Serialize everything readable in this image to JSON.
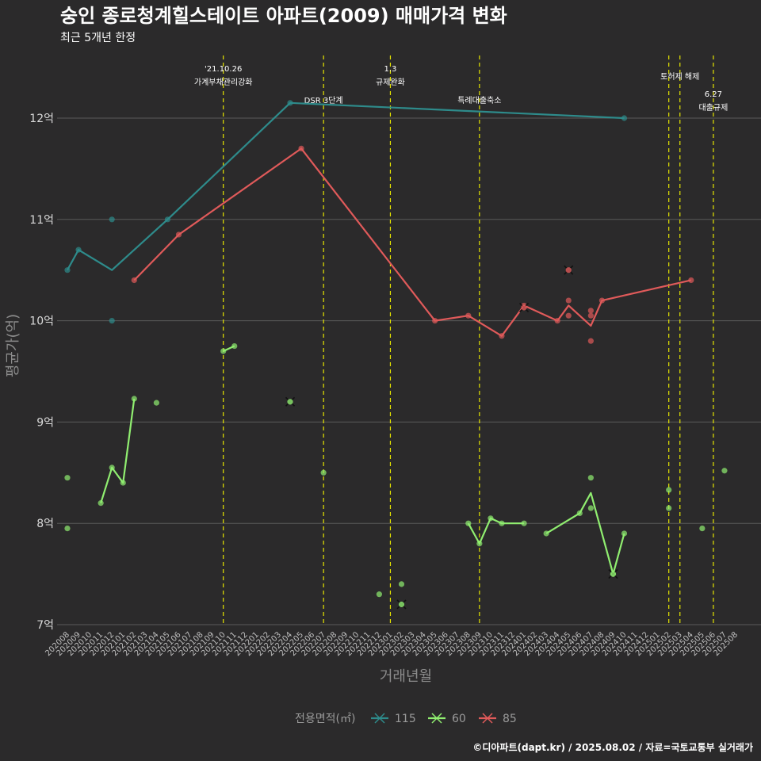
{
  "title": "숭인 종로청계힐스테이트 아파트(2009) 매매가격 변화",
  "subtitle": "최근 5개년 한정",
  "caption": "©디아파트(dapt.kr) / 2025.08.02 / 자료=국토교통부 실거래가",
  "chart_data": {
    "type": "line",
    "xlabel": "거래년월",
    "ylabel": "평균가(억)",
    "ylim": [
      7,
      12.6
    ],
    "yticks": [
      {
        "value": 7,
        "label": "7억"
      },
      {
        "value": 8,
        "label": "8억"
      },
      {
        "value": 9,
        "label": "9억"
      },
      {
        "value": 10,
        "label": "10억"
      },
      {
        "value": 11,
        "label": "11억"
      },
      {
        "value": 12,
        "label": "12억"
      }
    ],
    "x_categories": [
      "202008",
      "202009",
      "202010",
      "202011",
      "202012",
      "202101",
      "202102",
      "202103",
      "202104",
      "202105",
      "202106",
      "202107",
      "202108",
      "202109",
      "202110",
      "202111",
      "202112",
      "202201",
      "202202",
      "202203",
      "202204",
      "202205",
      "202206",
      "202207",
      "202208",
      "202209",
      "202210",
      "202211",
      "202212",
      "202301",
      "202302",
      "202303",
      "202304",
      "202305",
      "202306",
      "202307",
      "202308",
      "202309",
      "202310",
      "202311",
      "202312",
      "202401",
      "202402",
      "202403",
      "202404",
      "202405",
      "202406",
      "202407",
      "202408",
      "202409",
      "202410",
      "202411",
      "202412",
      "202501",
      "202502",
      "202503",
      "202504",
      "202505",
      "202506",
      "202507",
      "202508"
    ],
    "legend_title": "전용면적(㎡)",
    "series": [
      {
        "name": "115",
        "color": "#2e8b8b",
        "line": [
          [
            "202008",
            10.5
          ],
          [
            "202009",
            10.7
          ],
          [
            "202012",
            10.5
          ],
          [
            "202105",
            11.0
          ],
          [
            "202204",
            12.15
          ],
          [
            "202410",
            12.0
          ]
        ],
        "points": [
          [
            "202008",
            10.5
          ],
          [
            "202009",
            10.7
          ],
          [
            "202012",
            11.0
          ],
          [
            "202012",
            10.0
          ],
          [
            "202105",
            11.0
          ],
          [
            "202204",
            12.15
          ],
          [
            "202410",
            12.0
          ]
        ],
        "cancelled": []
      },
      {
        "name": "60",
        "color": "#90ee70",
        "line": [
          [
            "202011",
            8.2
          ],
          [
            "202012",
            8.55
          ],
          [
            "202101",
            8.4
          ],
          [
            "202102",
            9.23
          ]
        ],
        "line2": [
          [
            "202110",
            9.7
          ],
          [
            "202111",
            9.75
          ]
        ],
        "line3": [
          [
            "202308",
            8.0
          ],
          [
            "202309",
            7.8
          ],
          [
            "202310",
            8.05
          ],
          [
            "202311",
            8.0
          ],
          [
            "202401",
            8.0
          ]
        ],
        "line4": [
          [
            "202403",
            7.9
          ],
          [
            "202406",
            8.1
          ],
          [
            "202407",
            8.3
          ],
          [
            "202409",
            7.5
          ],
          [
            "202410",
            7.9
          ]
        ],
        "points": [
          [
            "202008",
            8.45
          ],
          [
            "202008",
            7.95
          ],
          [
            "202011",
            8.2
          ],
          [
            "202012",
            8.55
          ],
          [
            "202101",
            8.4
          ],
          [
            "202102",
            9.23
          ],
          [
            "202104",
            9.19
          ],
          [
            "202110",
            9.7
          ],
          [
            "202111",
            9.75
          ],
          [
            "202207",
            8.5
          ],
          [
            "202212",
            7.3
          ],
          [
            "202302",
            7.4
          ],
          [
            "202308",
            8.0
          ],
          [
            "202309",
            7.8
          ],
          [
            "202310",
            8.05
          ],
          [
            "202311",
            8.0
          ],
          [
            "202401",
            8.0
          ],
          [
            "202403",
            7.9
          ],
          [
            "202406",
            8.1
          ],
          [
            "202407",
            8.45
          ],
          [
            "202407",
            8.15
          ],
          [
            "202409",
            7.5
          ],
          [
            "202410",
            7.9
          ],
          [
            "202502",
            8.33
          ],
          [
            "202502",
            8.15
          ],
          [
            "202505",
            7.95
          ],
          [
            "202507",
            8.52
          ]
        ],
        "cancelled": [
          [
            "202204",
            9.2
          ],
          [
            "202302",
            7.2
          ],
          [
            "202409",
            7.5
          ]
        ]
      },
      {
        "name": "85",
        "color": "#e05a5a",
        "line": [
          [
            "202102",
            10.4
          ],
          [
            "202106",
            10.85
          ],
          [
            "202205",
            11.7
          ],
          [
            "202305",
            10.0
          ],
          [
            "202308",
            10.05
          ],
          [
            "202311",
            9.85
          ],
          [
            "202401",
            10.15
          ],
          [
            "202404",
            10.0
          ],
          [
            "202405",
            10.15
          ],
          [
            "202407",
            9.95
          ],
          [
            "202408",
            10.2
          ],
          [
            "202504",
            10.4
          ]
        ],
        "points": [
          [
            "202102",
            10.4
          ],
          [
            "202106",
            10.85
          ],
          [
            "202205",
            11.7
          ],
          [
            "202305",
            10.0
          ],
          [
            "202308",
            10.05
          ],
          [
            "202311",
            9.85
          ],
          [
            "202401",
            10.15
          ],
          [
            "202404",
            10.0
          ],
          [
            "202405",
            10.2
          ],
          [
            "202405",
            10.05
          ],
          [
            "202407",
            10.1
          ],
          [
            "202407",
            10.05
          ],
          [
            "202407",
            9.8
          ],
          [
            "202408",
            10.2
          ],
          [
            "202504",
            10.4
          ]
        ],
        "cancelled": [
          [
            "202401",
            10.13
          ],
          [
            "202405",
            10.5
          ]
        ]
      }
    ],
    "annotations": [
      {
        "x": "202110",
        "lines": [
          "'21.10.26",
          "가계부채관리강화"
        ],
        "level": 0
      },
      {
        "x": "202207",
        "lines": [
          "DSR 3단계"
        ],
        "level": 2
      },
      {
        "x": "202301",
        "lines": [
          "1.3",
          "규제완화"
        ],
        "level": 0
      },
      {
        "x": "202309",
        "lines": [
          "특례대출축소"
        ],
        "level": 2
      },
      {
        "x": "202502",
        "lines": [],
        "level": 1
      },
      {
        "x": "202503",
        "lines": [
          "토허제 해제"
        ],
        "level": 1
      },
      {
        "x": "202506",
        "lines": [
          "6.27",
          "대출규제"
        ],
        "level": 3
      }
    ]
  }
}
